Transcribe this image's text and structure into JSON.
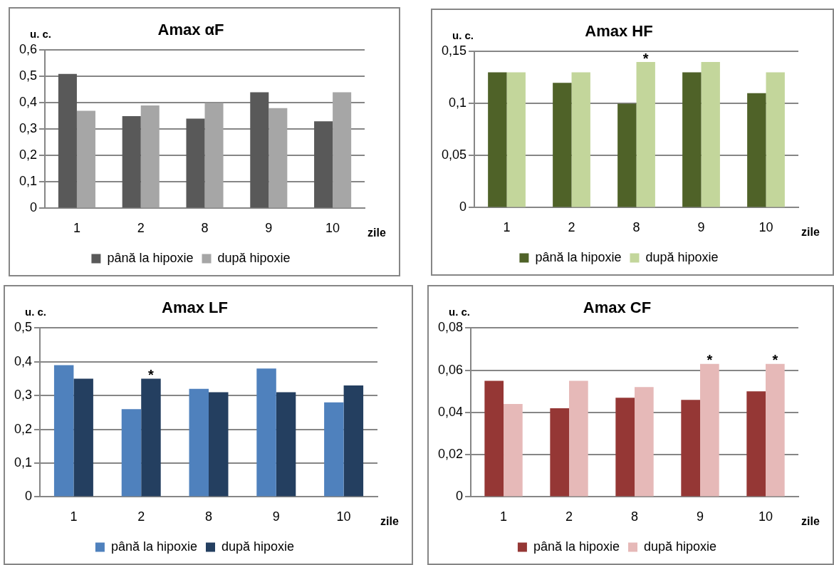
{
  "chart_data": [
    {
      "type": "bar",
      "title": "Amax αF",
      "ylabel": "u. c.",
      "xlabel": "zile",
      "categories": [
        "1",
        "2",
        "8",
        "9",
        "10"
      ],
      "series": [
        {
          "name": "până la hipoxie",
          "color": "#595959",
          "values": [
            0.51,
            0.35,
            0.34,
            0.44,
            0.33
          ]
        },
        {
          "name": "după hipoxie",
          "color": "#a6a6a6",
          "values": [
            0.37,
            0.39,
            0.4,
            0.38,
            0.44
          ]
        }
      ],
      "ylim": [
        0,
        0.6
      ],
      "yticks": [
        {
          "value": 0,
          "label": "0"
        },
        {
          "value": 0.1,
          "label": "0,1"
        },
        {
          "value": 0.2,
          "label": "0,2"
        },
        {
          "value": 0.3,
          "label": "0,3"
        },
        {
          "value": 0.4,
          "label": "0,4"
        },
        {
          "value": 0.5,
          "label": "0,5"
        },
        {
          "value": 0.6,
          "label": "0,6"
        }
      ],
      "grid": "y",
      "legend": "bottom"
    },
    {
      "type": "bar",
      "title": "Amax HF",
      "ylabel": "u. c.",
      "xlabel": "zile",
      "categories": [
        "1",
        "2",
        "8",
        "9",
        "10"
      ],
      "series": [
        {
          "name": "până la hipoxie",
          "color": "#4f6228",
          "values": [
            0.13,
            0.12,
            0.1,
            0.13,
            0.11
          ]
        },
        {
          "name": "după hipoxie",
          "color": "#c3d69b",
          "values": [
            0.13,
            0.13,
            0.14,
            0.14,
            0.13
          ]
        }
      ],
      "ylim": [
        0,
        0.15
      ],
      "yticks": [
        {
          "value": 0,
          "label": "0"
        },
        {
          "value": 0.05,
          "label": "0,05"
        },
        {
          "value": 0.1,
          "label": "0,1"
        },
        {
          "value": 0.15,
          "label": "0,15"
        }
      ],
      "grid": "y",
      "legend": "bottom",
      "annotations": [
        {
          "text": "*",
          "x": "8",
          "y": 0.14
        }
      ]
    },
    {
      "type": "bar",
      "title": "Amax LF",
      "ylabel": "u. c.",
      "xlabel": "zile",
      "categories": [
        "1",
        "2",
        "8",
        "9",
        "10"
      ],
      "series": [
        {
          "name": "până la hipoxie",
          "color": "#4f81bd",
          "values": [
            0.39,
            0.26,
            0.32,
            0.38,
            0.28
          ]
        },
        {
          "name": "după hipoxie",
          "color": "#243f60",
          "values": [
            0.35,
            0.35,
            0.31,
            0.31,
            0.33
          ]
        }
      ],
      "ylim": [
        0,
        0.5
      ],
      "yticks": [
        {
          "value": 0,
          "label": "0"
        },
        {
          "value": 0.1,
          "label": "0,1"
        },
        {
          "value": 0.2,
          "label": "0,2"
        },
        {
          "value": 0.3,
          "label": "0,3"
        },
        {
          "value": 0.4,
          "label": "0,4"
        },
        {
          "value": 0.5,
          "label": "0,5"
        }
      ],
      "grid": "y",
      "legend": "bottom",
      "annotations": [
        {
          "text": "*",
          "x": "2",
          "y": 0.35
        }
      ]
    },
    {
      "type": "bar",
      "title": "Amax CF",
      "ylabel": "u. c.",
      "xlabel": "zile",
      "categories": [
        "1",
        "2",
        "8",
        "9",
        "10"
      ],
      "series": [
        {
          "name": "până la hipoxie",
          "color": "#953735",
          "values": [
            0.055,
            0.042,
            0.047,
            0.046,
            0.05
          ]
        },
        {
          "name": "după hipoxie",
          "color": "#e6b9b8",
          "values": [
            0.044,
            0.055,
            0.052,
            0.063,
            0.063
          ]
        }
      ],
      "ylim": [
        0,
        0.08
      ],
      "yticks": [
        {
          "value": 0,
          "label": "0"
        },
        {
          "value": 0.02,
          "label": "0,02"
        },
        {
          "value": 0.04,
          "label": "0,04"
        },
        {
          "value": 0.06,
          "label": "0,06"
        },
        {
          "value": 0.08,
          "label": "0,08"
        }
      ],
      "grid": "y",
      "legend": "bottom",
      "annotations": [
        {
          "text": "*",
          "x": "9",
          "y": 0.063
        },
        {
          "text": "*",
          "x": "10",
          "y": 0.063
        }
      ]
    }
  ]
}
